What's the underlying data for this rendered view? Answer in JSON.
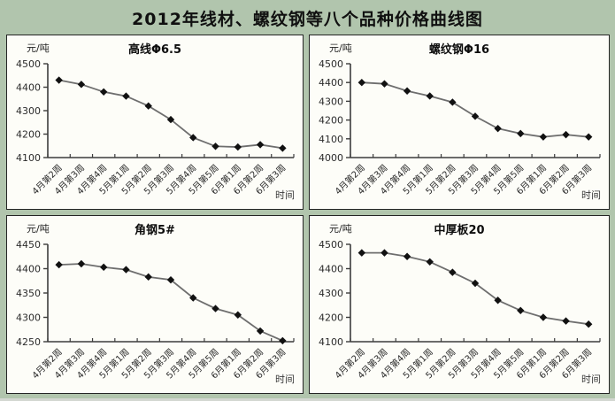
{
  "page_title": "2012年线材、螺纹钢等八个品种价格曲线图",
  "colors": {
    "background": "#b1c5ad",
    "panel_bg": "#fdfdf8",
    "panel_border": "#242424",
    "axis": "#3c3c3c",
    "line": "#6e6e6e",
    "marker": "#111111",
    "tick_text": "#2b2b2b"
  },
  "chart_data": [
    {
      "type": "line",
      "title": "高线Φ6.5",
      "ylabel": "元/吨",
      "xlabel": "时间",
      "ylim": [
        4100,
        4500
      ],
      "ytick_step": 100,
      "grid": false,
      "legend": "none",
      "categories": [
        "4月第2周",
        "4月第3周",
        "4月第4周",
        "5月第1周",
        "5月第2周",
        "5月第3周",
        "5月第4周",
        "5月第5周",
        "6月第1周",
        "6月第2周",
        "6月第3周"
      ],
      "values": [
        4430,
        4412,
        4380,
        4362,
        4320,
        4262,
        4185,
        4148,
        4145,
        4155,
        4140
      ]
    },
    {
      "type": "line",
      "title": "螺纹钢Φ16",
      "ylabel": "元/吨",
      "xlabel": "时间",
      "ylim": [
        4000,
        4500
      ],
      "ytick_step": 100,
      "grid": false,
      "legend": "none",
      "categories": [
        "4月第2周",
        "4月第3周",
        "4月第4周",
        "5月第1周",
        "5月第2周",
        "5月第3周",
        "5月第4周",
        "5月第5周",
        "6月第1周",
        "6月第2周",
        "6月第3周"
      ],
      "values": [
        4400,
        4393,
        4355,
        4328,
        4295,
        4220,
        4155,
        4128,
        4110,
        4122,
        4110
      ]
    },
    {
      "type": "line",
      "title": "角钢5#",
      "ylabel": "元/吨",
      "xlabel": "时间",
      "ylim": [
        4250,
        4450
      ],
      "ytick_step": 50,
      "grid": false,
      "legend": "none",
      "categories": [
        "4月第2周",
        "4月第3周",
        "4月第4周",
        "5月第1周",
        "5月第2周",
        "5月第3周",
        "5月第4周",
        "5月第5周",
        "6月第1周",
        "6月第2周",
        "6月第3周"
      ],
      "values": [
        4408,
        4410,
        4403,
        4398,
        4383,
        4377,
        4340,
        4318,
        4305,
        4272,
        4252
      ]
    },
    {
      "type": "line",
      "title": "中厚板20",
      "ylabel": "元/吨",
      "xlabel": "时间",
      "ylim": [
        4100,
        4500
      ],
      "ytick_step": 100,
      "grid": false,
      "legend": "none",
      "categories": [
        "4月第2周",
        "4月第3周",
        "4月第4周",
        "5月第1周",
        "5月第2周",
        "5月第3周",
        "5月第4周",
        "5月第5周",
        "6月第1周",
        "6月第2周",
        "6月第3周"
      ],
      "values": [
        4465,
        4465,
        4450,
        4428,
        4385,
        4340,
        4270,
        4228,
        4200,
        4185,
        4172
      ]
    }
  ]
}
